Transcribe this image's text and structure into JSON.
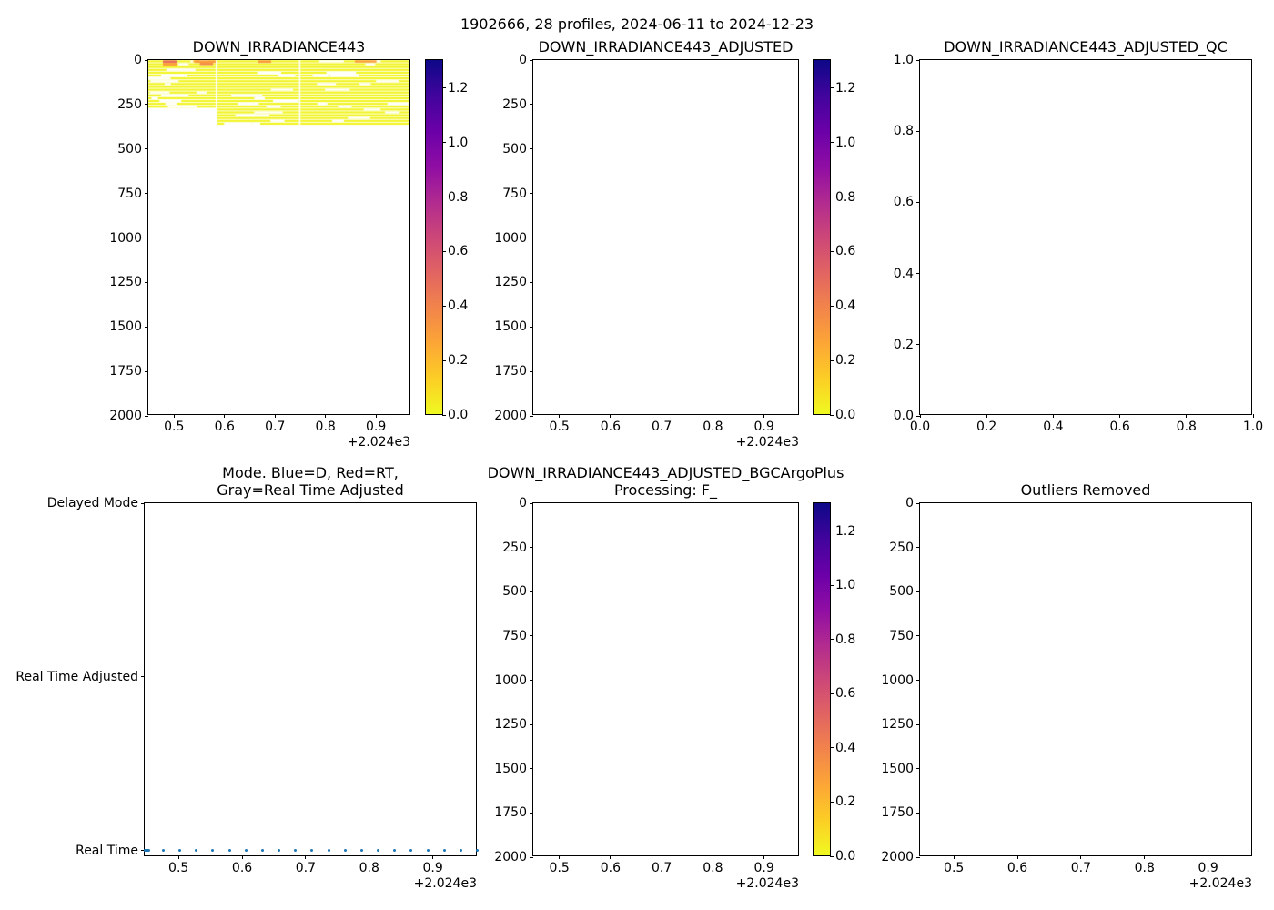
{
  "figure": {
    "suptitle": "1902666, 28 profiles, 2024-06-11 to 2024-12-23",
    "background": "#ffffff"
  },
  "colormap": {
    "name": "plasma_r",
    "vmin": 0.0,
    "vmax": 1.3,
    "stops": [
      "#f0f921",
      "#fcce25",
      "#fca636",
      "#f2844b",
      "#e16462",
      "#cc4778",
      "#b12a90",
      "#8f0da4",
      "#6a00a8",
      "#41049d",
      "#0d0887"
    ]
  },
  "dot_color": "#1f77b4",
  "chart_data": [
    {
      "id": "down-irradiance443",
      "type": "heatmap",
      "title_lines": [
        "DOWN_IRRADIANCE443"
      ],
      "x_range": [
        2024.449,
        2024.97
      ],
      "x_ticks": {
        "values": [
          2024.5,
          2024.6,
          2024.7,
          2024.8,
          2024.9
        ],
        "labels": [
          "0.5",
          "0.6",
          "0.7",
          "0.8",
          "0.9"
        ],
        "offset": "+2.024e3"
      },
      "y_range": [
        0,
        2000
      ],
      "y_inverted": true,
      "y_ticks": {
        "values": [
          0,
          250,
          500,
          750,
          1000,
          1250,
          1500,
          1750,
          2000
        ],
        "labels": [
          "0",
          "250",
          "500",
          "750",
          "1000",
          "1250",
          "1500",
          "1750",
          "2000"
        ]
      },
      "colorbar": {
        "tick_values": [
          0,
          0.2,
          0.4,
          0.6,
          0.8,
          1.0,
          1.2
        ],
        "tick_labels": [
          "0.0",
          "0.2",
          "0.4",
          "0.6",
          "0.8",
          "1.0",
          "1.2"
        ]
      },
      "heatmap": {
        "seed": 42,
        "base_value": 0.02,
        "base_color": "#f1f41f",
        "stripe_step_m": 16,
        "stripe_height_m": 11,
        "start_depth_m": 2,
        "column_groups": [
          {
            "t0": 2024.449,
            "t1": 2024.5833,
            "depth_max": 260
          },
          {
            "t0": 2024.5862,
            "t1": 2024.7496,
            "depth_max": 355
          },
          {
            "t0": 2024.7525,
            "t1": 2024.97,
            "depth_max": 355
          }
        ],
        "surface_anomalies": [
          {
            "t0": 2024.478,
            "t1": 2024.506,
            "d0": 2,
            "d1": 16,
            "v": 0.48
          },
          {
            "t0": 2024.478,
            "t1": 2024.506,
            "d0": 16,
            "d1": 34,
            "v": 0.27
          },
          {
            "t0": 2024.538,
            "t1": 2024.552,
            "d0": 2,
            "d1": 12,
            "v": 0.18
          },
          {
            "t0": 2024.541,
            "t1": 2024.5833,
            "d0": 2,
            "d1": 16,
            "v": 0.3
          },
          {
            "t0": 2024.552,
            "t1": 2024.578,
            "d0": 16,
            "d1": 28,
            "v": 0.38
          },
          {
            "t0": 2024.668,
            "t1": 2024.694,
            "d0": 2,
            "d1": 16,
            "v": 0.3
          },
          {
            "t0": 2024.861,
            "t1": 2024.904,
            "d0": 2,
            "d1": 14,
            "v": 0.3
          }
        ]
      }
    },
    {
      "id": "down-irradiance443-adjusted",
      "type": "heatmap",
      "empty": true,
      "title_lines": [
        "DOWN_IRRADIANCE443_ADJUSTED"
      ],
      "x_range": [
        2024.449,
        2024.97
      ],
      "x_ticks": {
        "values": [
          2024.5,
          2024.6,
          2024.7,
          2024.8,
          2024.9
        ],
        "labels": [
          "0.5",
          "0.6",
          "0.7",
          "0.8",
          "0.9"
        ],
        "offset": "+2.024e3"
      },
      "y_range": [
        0,
        2000
      ],
      "y_inverted": true,
      "y_ticks": {
        "values": [
          0,
          250,
          500,
          750,
          1000,
          1250,
          1500,
          1750,
          2000
        ],
        "labels": [
          "0",
          "250",
          "500",
          "750",
          "1000",
          "1250",
          "1500",
          "1750",
          "2000"
        ]
      },
      "colorbar": {
        "tick_values": [
          0,
          0.2,
          0.4,
          0.6,
          0.8,
          1.0,
          1.2
        ],
        "tick_labels": [
          "0.0",
          "0.2",
          "0.4",
          "0.6",
          "0.8",
          "1.0",
          "1.2"
        ]
      }
    },
    {
      "id": "down-irradiance443-adjusted-qc",
      "type": "scatter",
      "empty": true,
      "title_lines": [
        "DOWN_IRRADIANCE443_ADJUSTED_QC"
      ],
      "x_range": [
        0,
        1
      ],
      "x_ticks": {
        "values": [
          0,
          0.2,
          0.4,
          0.6,
          0.8,
          1.0
        ],
        "labels": [
          "0.0",
          "0.2",
          "0.4",
          "0.6",
          "0.8",
          "1.0"
        ]
      },
      "y_range": [
        0,
        1
      ],
      "y_inverted": false,
      "y_ticks": {
        "values": [
          0,
          0.2,
          0.4,
          0.6,
          0.8,
          1.0
        ],
        "labels": [
          "0.0",
          "0.2",
          "0.4",
          "0.6",
          "0.8",
          "1.0"
        ]
      }
    },
    {
      "id": "mode",
      "type": "scatter",
      "title_lines": [
        "Mode. Blue=D, Red=RT,",
        "Gray=Real Time Adjusted"
      ],
      "x_range": [
        2024.4468,
        2024.9706
      ],
      "x_ticks": {
        "values": [
          2024.5,
          2024.6,
          2024.7,
          2024.8,
          2024.9
        ],
        "labels": [
          "0.5",
          "0.6",
          "0.7",
          "0.8",
          "0.9"
        ],
        "offset": "+2.024e3"
      },
      "y_range": [
        -0.037,
        2.0
      ],
      "y_inverted": false,
      "y_categories": {
        "values": [
          0,
          1,
          2
        ],
        "labels": [
          "Real Time",
          "Real Time Adjusted",
          "Delayed Mode"
        ]
      },
      "points": {
        "mode": "Real Time",
        "mode_value": 0,
        "times": [
          2024.447,
          2024.4478,
          2024.4486,
          2024.4494,
          2024.4502,
          2024.451,
          2024.4518,
          2024.4526,
          2024.476,
          2024.502,
          2024.528,
          2024.554,
          2024.58,
          2024.606,
          2024.632,
          2024.658,
          2024.684,
          2024.71,
          2024.736,
          2024.762,
          2024.788,
          2024.814,
          2024.84,
          2024.866,
          2024.892,
          2024.918,
          2024.944,
          2024.97
        ]
      }
    },
    {
      "id": "bgcargoplus-processing",
      "type": "heatmap",
      "empty": true,
      "title_lines": [
        "DOWN_IRRADIANCE443_ADJUSTED_BGCArgoPlus",
        "Processing: F_"
      ],
      "x_range": [
        2024.449,
        2024.97
      ],
      "x_ticks": {
        "values": [
          2024.5,
          2024.6,
          2024.7,
          2024.8,
          2024.9
        ],
        "labels": [
          "0.5",
          "0.6",
          "0.7",
          "0.8",
          "0.9"
        ],
        "offset": "+2.024e3"
      },
      "y_range": [
        0,
        2000
      ],
      "y_inverted": true,
      "y_ticks": {
        "values": [
          0,
          250,
          500,
          750,
          1000,
          1250,
          1500,
          1750,
          2000
        ],
        "labels": [
          "0",
          "250",
          "500",
          "750",
          "1000",
          "1250",
          "1500",
          "1750",
          "2000"
        ]
      },
      "colorbar": {
        "tick_values": [
          0,
          0.2,
          0.4,
          0.6,
          0.8,
          1.0,
          1.2
        ],
        "tick_labels": [
          "0.0",
          "0.2",
          "0.4",
          "0.6",
          "0.8",
          "1.0",
          "1.2"
        ]
      }
    },
    {
      "id": "outliers-removed",
      "type": "heatmap",
      "empty": true,
      "title_lines": [
        "Outliers Removed"
      ],
      "x_range": [
        2024.4468,
        2024.9706
      ],
      "x_ticks": {
        "values": [
          2024.5,
          2024.6,
          2024.7,
          2024.8,
          2024.9
        ],
        "labels": [
          "0.5",
          "0.6",
          "0.7",
          "0.8",
          "0.9"
        ],
        "offset": "+2.024e3"
      },
      "y_range": [
        0,
        2000
      ],
      "y_inverted": true,
      "y_ticks": {
        "values": [
          0,
          250,
          500,
          750,
          1000,
          1250,
          1500,
          1750,
          2000
        ],
        "labels": [
          "0",
          "250",
          "500",
          "750",
          "1000",
          "1250",
          "1500",
          "1750",
          "2000"
        ]
      }
    }
  ]
}
